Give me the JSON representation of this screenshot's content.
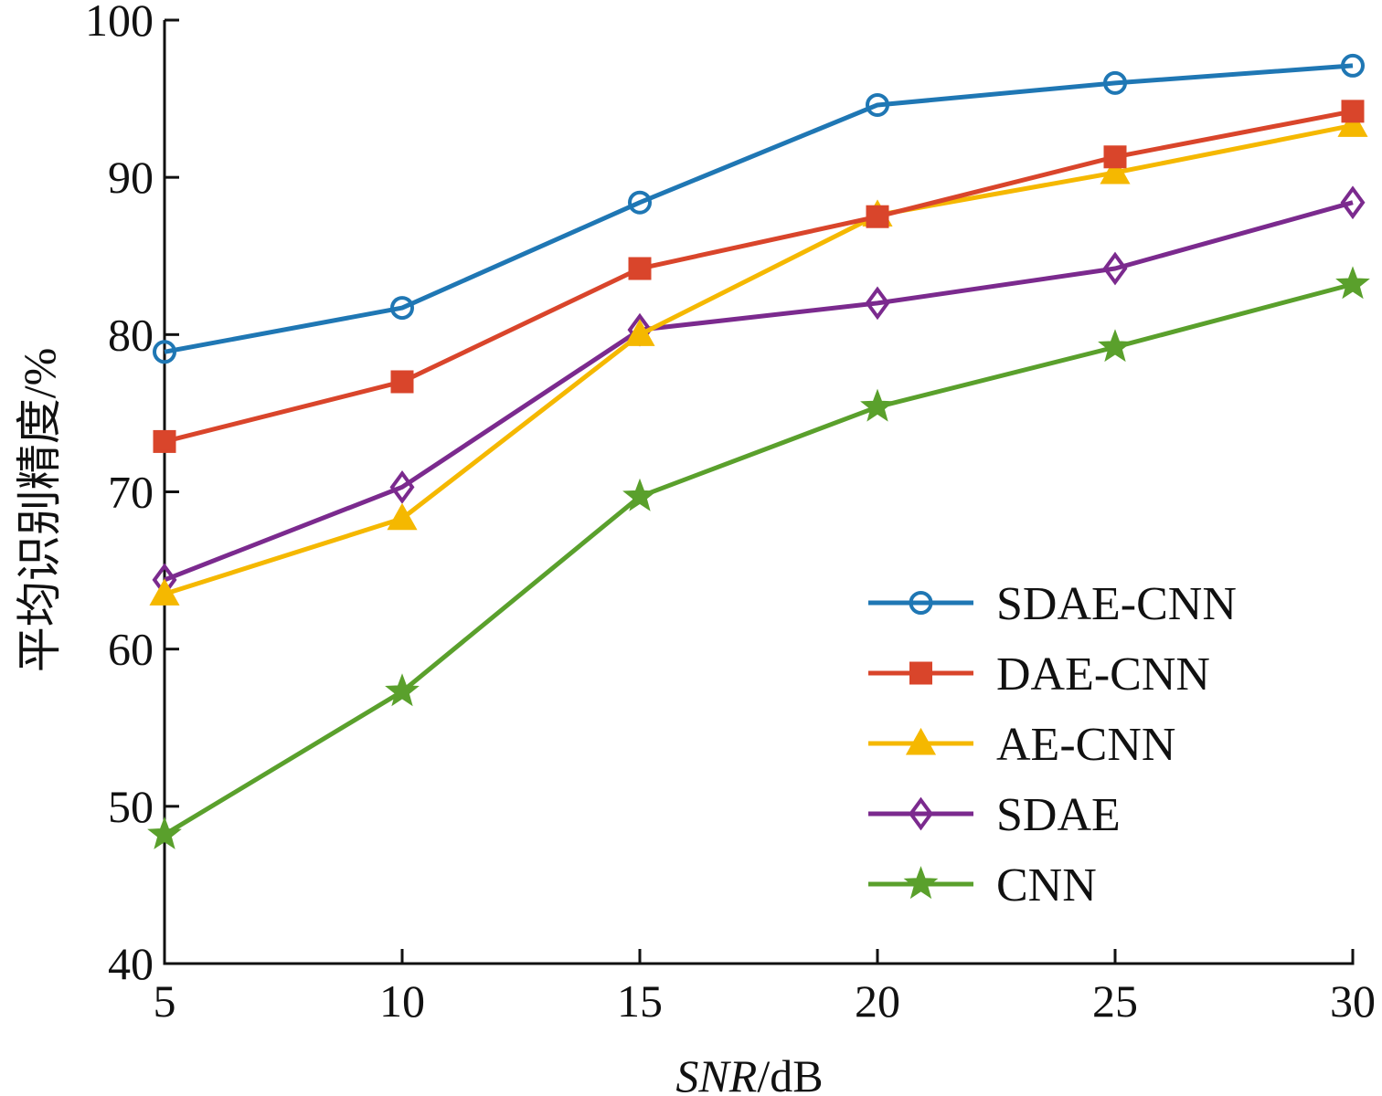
{
  "chart_data": {
    "type": "line",
    "x": [
      5,
      10,
      15,
      20,
      25,
      30
    ],
    "xlim": [
      5,
      30
    ],
    "ylim": [
      40,
      100
    ],
    "xticks": [
      "5",
      "10",
      "15",
      "20",
      "25",
      "30"
    ],
    "yticks": [
      "40",
      "50",
      "60",
      "70",
      "80",
      "90",
      "100"
    ],
    "xlabel_italic": "SNR",
    "xlabel_unit": "/dB",
    "ylabel": "平均识别精度/%",
    "grid": false,
    "legend_position": "bottom-right",
    "series": [
      {
        "name": "SDAE-CNN",
        "color": "#1f77b4",
        "marker": "circle",
        "values": [
          78.9,
          81.7,
          88.4,
          94.6,
          96.0,
          97.1
        ]
      },
      {
        "name": "DAE-CNN",
        "color": "#d9452b",
        "marker": "square",
        "values": [
          73.2,
          77.0,
          84.2,
          87.5,
          91.3,
          94.2
        ]
      },
      {
        "name": "AE-CNN",
        "color": "#f5b800",
        "marker": "triangle",
        "values": [
          63.5,
          68.3,
          80.0,
          87.6,
          90.3,
          93.3
        ]
      },
      {
        "name": "SDAE",
        "color": "#7b2a8e",
        "marker": "diamond",
        "values": [
          64.4,
          70.3,
          80.3,
          82.0,
          84.2,
          88.4
        ]
      },
      {
        "name": "CNN",
        "color": "#5aa02c",
        "marker": "star",
        "values": [
          48.2,
          57.3,
          69.7,
          75.4,
          79.2,
          83.2
        ]
      }
    ]
  }
}
